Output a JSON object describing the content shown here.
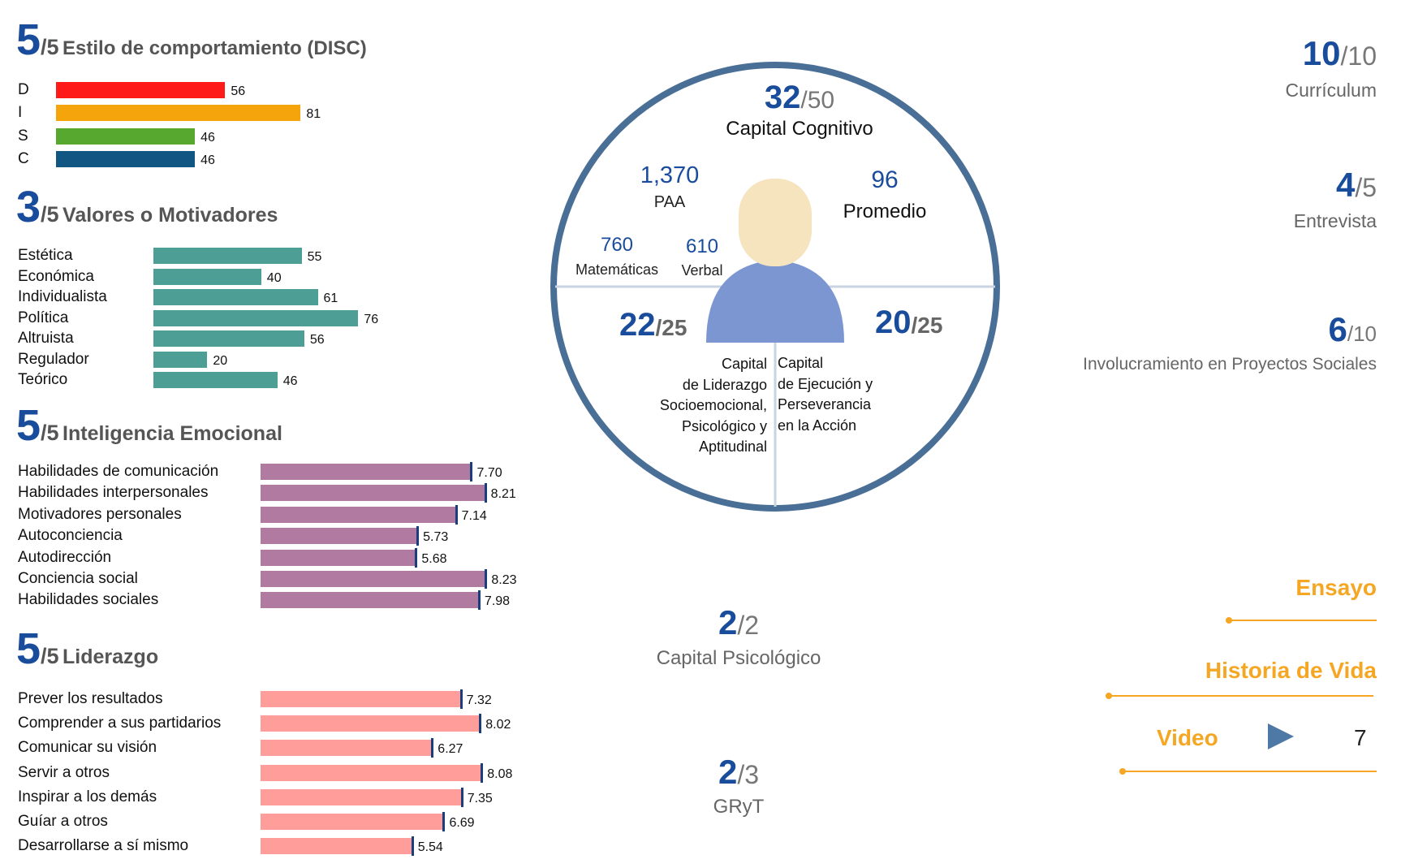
{
  "disc": {
    "score": "5",
    "denom": "/5",
    "title": "Estilo de comportamiento (DISC)",
    "items": [
      {
        "label": "D",
        "value": 56,
        "color": "#ff1a1a"
      },
      {
        "label": "I",
        "value": 81,
        "color": "#f5a40c"
      },
      {
        "label": "S",
        "value": 46,
        "color": "#56a82e"
      },
      {
        "label": "C",
        "value": 46,
        "color": "#125783"
      }
    ]
  },
  "valores": {
    "score": "3",
    "denom": "/5",
    "title": "Valores o Motivadores",
    "color": "#4d9f96",
    "items": [
      {
        "label": "Estética",
        "value": 55
      },
      {
        "label": "Económica",
        "value": 40
      },
      {
        "label": "Individualista",
        "value": 61
      },
      {
        "label": "Política",
        "value": 76
      },
      {
        "label": "Altruista",
        "value": 56
      },
      {
        "label": "Regulador",
        "value": 20
      },
      {
        "label": "Teórico",
        "value": 46
      }
    ]
  },
  "inteligencia": {
    "score": "5",
    "denom": "/5",
    "title": "Inteligencia Emocional",
    "color": "#b07aa1",
    "items": [
      {
        "label": "Habilidades de comunicación",
        "value": "7.70"
      },
      {
        "label": "Habilidades interpersonales",
        "value": "8.21"
      },
      {
        "label": "Motivadores personales",
        "value": "7.14"
      },
      {
        "label": "Autoconciencia",
        "value": "5.73"
      },
      {
        "label": "Autodirección",
        "value": "5.68"
      },
      {
        "label": "Conciencia social",
        "value": "8.23"
      },
      {
        "label": "Habilidades sociales",
        "value": "7.98"
      }
    ]
  },
  "liderazgo": {
    "score": "5",
    "denom": "/5",
    "title": "Liderazgo",
    "color": "#ff9d9a",
    "items": [
      {
        "label": "Prever los resultados",
        "value": "7.32"
      },
      {
        "label": "Comprender a sus partidarios",
        "value": "8.02"
      },
      {
        "label": "Comunicar su visión",
        "value": "6.27"
      },
      {
        "label": "Servir a otros",
        "value": "8.08"
      },
      {
        "label": "Inspirar a los demás",
        "value": "7.35"
      },
      {
        "label": "Guíar a otros",
        "value": "6.69"
      },
      {
        "label": "Desarrollarse a sí mismo",
        "value": "5.54"
      }
    ]
  },
  "circle": {
    "cognitivo_score": "32",
    "cognitivo_denom": "/50",
    "cognitivo_label": "Capital Cognitivo",
    "paa_value": "1,370",
    "paa_label": "PAA",
    "promedio_value": "96",
    "promedio_label": "Promedio",
    "mat_value": "760",
    "mat_label": "Matemáticas",
    "verbal_value": "610",
    "verbal_label": "Verbal",
    "lid_score": "22",
    "lid_denom": "/25",
    "lid_lines": [
      "Capital",
      "de Liderazgo",
      "Socioemocional,",
      "Psicológico y",
      "Aptitudinal"
    ],
    "ejec_score": "20",
    "ejec_denom": "/25",
    "ejec_lines": [
      "Capital",
      "de Ejecución y",
      "Perseverancia",
      "en la Acción"
    ]
  },
  "psicologico": {
    "score": "2",
    "denom": "/2",
    "label": "Capital Psicológico"
  },
  "gryt": {
    "score": "2",
    "denom": "/3",
    "label": "GRyT"
  },
  "right_scores": [
    {
      "num": "10",
      "den": "/10",
      "label": "Currículum"
    },
    {
      "num": "4",
      "den": "/5",
      "label": "Entrevista"
    },
    {
      "num": "6",
      "den": "/10",
      "label": "Involucramiento en Proyectos Sociales"
    }
  ],
  "ensayo": {
    "title": "Ensayo"
  },
  "historia": {
    "title": "Historia de Vida"
  },
  "video": {
    "title": "Video",
    "count": "7"
  },
  "colors": {
    "accent_blue": "#1a4c9c",
    "orange": "#f5a623",
    "circle": "#4a6f96",
    "person": "#7b96d1",
    "head": "#f6e4bf"
  },
  "chart_data": [
    {
      "type": "bar",
      "orientation": "horizontal",
      "title": "Estilo de comportamiento (DISC)",
      "categories": [
        "D",
        "I",
        "S",
        "C"
      ],
      "values": [
        56,
        81,
        46,
        46
      ]
    },
    {
      "type": "bar",
      "orientation": "horizontal",
      "title": "Valores o Motivadores",
      "categories": [
        "Estética",
        "Económica",
        "Individualista",
        "Política",
        "Altruista",
        "Regulador",
        "Teórico"
      ],
      "values": [
        55,
        40,
        61,
        76,
        56,
        20,
        46
      ]
    },
    {
      "type": "bar",
      "orientation": "horizontal",
      "title": "Inteligencia Emocional",
      "categories": [
        "Habilidades de comunicación",
        "Habilidades interpersonales",
        "Motivadores personales",
        "Autoconciencia",
        "Autodirección",
        "Conciencia social",
        "Habilidades sociales"
      ],
      "values": [
        7.7,
        8.21,
        7.14,
        5.73,
        5.68,
        8.23,
        7.98
      ]
    },
    {
      "type": "bar",
      "orientation": "horizontal",
      "title": "Liderazgo",
      "categories": [
        "Prever los resultados",
        "Comprender a sus partidarios",
        "Comunicar su visión",
        "Servir a otros",
        "Inspirar a los demás",
        "Guíar a otros",
        "Desarrollarse a sí mismo"
      ],
      "values": [
        7.32,
        8.02,
        6.27,
        8.08,
        7.35,
        6.69,
        5.54
      ]
    }
  ]
}
